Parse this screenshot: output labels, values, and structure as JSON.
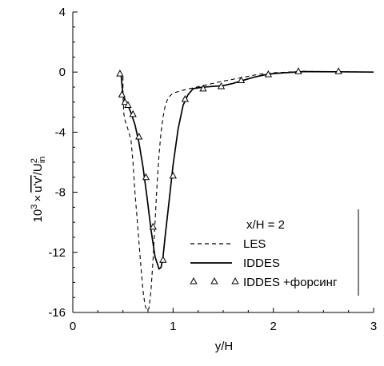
{
  "chart_data": {
    "type": "line",
    "annotation": "x/H = 2",
    "xlabel": "y/H",
    "ylabel": {
      "base": "10",
      "exp": "3",
      "times": "×",
      "uv": "u'v'",
      "slash": "/",
      "U": "U",
      "sup": "2",
      "sub": "in"
    },
    "xlim": [
      0,
      3
    ],
    "ylim": [
      -16,
      4
    ],
    "x_ticks": [
      0,
      1,
      2,
      3
    ],
    "y_ticks": [
      4,
      0,
      -4,
      -8,
      -12,
      -16
    ],
    "grid": false,
    "legend_position": "bottom-right",
    "series": [
      {
        "name": "LES",
        "style": "dashed",
        "x": [
          0.5,
          0.5,
          0.51,
          0.52,
          0.55,
          0.58,
          0.6,
          0.62,
          0.65,
          0.68,
          0.7,
          0.72,
          0.74,
          0.76,
          0.78,
          0.8,
          0.82,
          0.84,
          0.86,
          0.88,
          0.9,
          0.92,
          0.95,
          1.0,
          1.1,
          1.3,
          1.5,
          1.7,
          1.85,
          2.0,
          2.3,
          3.0
        ],
        "y": [
          -0.3,
          -1.5,
          -2.8,
          -3.2,
          -3.8,
          -4.5,
          -6.0,
          -8.0,
          -10.5,
          -13.0,
          -14.5,
          -15.5,
          -15.9,
          -15.7,
          -14.5,
          -12.5,
          -10.0,
          -7.5,
          -5.5,
          -4.0,
          -3.0,
          -2.3,
          -1.7,
          -1.4,
          -1.2,
          -0.9,
          -0.6,
          -0.35,
          -0.15,
          -0.05,
          0.05,
          0.0
        ]
      },
      {
        "name": "IDDES",
        "style": "solid",
        "x": [
          0.48,
          0.49,
          0.5,
          0.52,
          0.55,
          0.58,
          0.62,
          0.66,
          0.7,
          0.74,
          0.78,
          0.82,
          0.86,
          0.88,
          0.9,
          0.92,
          0.95,
          1.0,
          1.05,
          1.1,
          1.15,
          1.2,
          1.3,
          1.4,
          1.5,
          1.6,
          1.7,
          1.8,
          1.9,
          2.0,
          2.1,
          2.3,
          2.6,
          3.0
        ],
        "y": [
          -0.1,
          -0.8,
          -1.5,
          -1.9,
          -2.2,
          -2.7,
          -3.5,
          -4.7,
          -6.3,
          -8.3,
          -10.5,
          -12.3,
          -13.1,
          -13.0,
          -12.3,
          -11.0,
          -9.2,
          -6.2,
          -3.8,
          -2.2,
          -1.5,
          -1.1,
          -1.0,
          -0.95,
          -0.9,
          -0.75,
          -0.55,
          -0.35,
          -0.2,
          -0.1,
          -0.05,
          0.03,
          0.02,
          0.0
        ]
      },
      {
        "name": "IDDES +форсинг",
        "style": "triangle-markers",
        "x": [
          0.47,
          0.49,
          0.52,
          0.55,
          0.6,
          0.66,
          0.73,
          0.8,
          0.9,
          1.0,
          1.12,
          1.3,
          1.48,
          1.68,
          1.95,
          2.25,
          2.65
        ],
        "y": [
          -0.1,
          -1.5,
          -2.0,
          -2.2,
          -2.8,
          -4.3,
          -7.0,
          -10.3,
          -12.5,
          -6.9,
          -1.8,
          -1.1,
          -0.95,
          -0.55,
          -0.15,
          0.05,
          0.05
        ]
      }
    ]
  }
}
